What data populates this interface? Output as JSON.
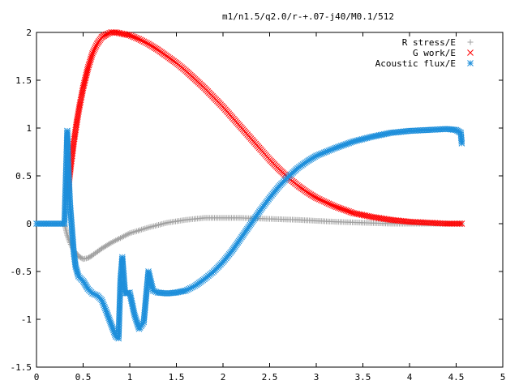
{
  "chart_data": {
    "type": "scatter",
    "title": "m1/n1.5/q2.0/r-+.07-j40/M0.1/512",
    "xlabel": "",
    "ylabel": "",
    "xlim": [
      0,
      5
    ],
    "ylim": [
      -1.5,
      2
    ],
    "x_ticks": [
      "0",
      "0.5",
      "1",
      "1.5",
      "2",
      "2.5",
      "3",
      "3.5",
      "4",
      "4.5",
      "5"
    ],
    "y_ticks": [
      "-1.5",
      "-1",
      "-0.5",
      "0",
      "0.5",
      "1",
      "1.5",
      "2"
    ],
    "legend_position": "top-right",
    "series": [
      {
        "name": "R stress/E",
        "marker": "plus",
        "color": "#a0a0a0",
        "x": [
          0.0,
          0.1,
          0.2,
          0.3,
          0.33,
          0.36,
          0.4,
          0.45,
          0.5,
          0.55,
          0.6,
          0.7,
          0.8,
          0.9,
          1.0,
          1.2,
          1.4,
          1.6,
          1.8,
          2.0,
          2.2,
          2.5,
          2.8,
          3.0,
          3.2,
          3.5,
          3.8,
          4.0,
          4.2,
          4.5,
          4.56
        ],
        "y": [
          0.0,
          0.0,
          0.0,
          0.0,
          -0.12,
          -0.2,
          -0.28,
          -0.34,
          -0.37,
          -0.36,
          -0.33,
          -0.26,
          -0.2,
          -0.15,
          -0.1,
          -0.04,
          0.01,
          0.04,
          0.06,
          0.06,
          0.06,
          0.05,
          0.04,
          0.03,
          0.02,
          0.01,
          0.0,
          0.0,
          0.0,
          0.0,
          0.0
        ]
      },
      {
        "name": "G work/E",
        "marker": "cross",
        "color": "#ff0000",
        "x": [
          0.33,
          0.35,
          0.37,
          0.4,
          0.43,
          0.46,
          0.5,
          0.55,
          0.6,
          0.65,
          0.7,
          0.75,
          0.8,
          0.85,
          0.9,
          1.0,
          1.1,
          1.2,
          1.3,
          1.4,
          1.5,
          1.6,
          1.7,
          1.8,
          1.9,
          2.0,
          2.1,
          2.2,
          2.3,
          2.4,
          2.5,
          2.6,
          2.7,
          2.8,
          2.9,
          3.0,
          3.2,
          3.4,
          3.6,
          3.8,
          4.0,
          4.2,
          4.4,
          4.56
        ],
        "y": [
          0.28,
          0.45,
          0.62,
          0.85,
          1.05,
          1.22,
          1.42,
          1.62,
          1.78,
          1.88,
          1.95,
          1.98,
          2.0,
          2.0,
          1.99,
          1.97,
          1.93,
          1.88,
          1.82,
          1.75,
          1.68,
          1.6,
          1.51,
          1.42,
          1.32,
          1.22,
          1.11,
          1.0,
          0.89,
          0.78,
          0.67,
          0.57,
          0.48,
          0.4,
          0.33,
          0.27,
          0.18,
          0.11,
          0.07,
          0.04,
          0.02,
          0.01,
          0.0,
          0.0
        ]
      },
      {
        "name": "Acoustic flux/E",
        "marker": "star",
        "color": "#1e8fdb",
        "x": [
          0.0,
          0.1,
          0.2,
          0.3,
          0.33,
          0.34,
          0.35,
          0.36,
          0.38,
          0.4,
          0.42,
          0.45,
          0.5,
          0.55,
          0.6,
          0.65,
          0.7,
          0.75,
          0.8,
          0.85,
          0.88,
          0.9,
          0.92,
          0.95,
          1.0,
          1.05,
          1.1,
          1.15,
          1.2,
          1.25,
          1.3,
          1.4,
          1.5,
          1.6,
          1.7,
          1.8,
          1.9,
          2.0,
          2.1,
          2.2,
          2.3,
          2.4,
          2.5,
          2.6,
          2.7,
          2.8,
          2.9,
          3.0,
          3.2,
          3.4,
          3.6,
          3.8,
          4.0,
          4.2,
          4.4,
          4.5,
          4.55,
          4.56
        ],
        "y": [
          0.0,
          0.0,
          0.0,
          0.0,
          0.97,
          0.65,
          0.42,
          0.2,
          -0.05,
          -0.3,
          -0.45,
          -0.55,
          -0.6,
          -0.68,
          -0.73,
          -0.75,
          -0.8,
          -0.92,
          -1.05,
          -1.18,
          -1.2,
          -0.6,
          -0.35,
          -0.73,
          -0.72,
          -0.95,
          -1.1,
          -1.03,
          -0.5,
          -0.7,
          -0.72,
          -0.73,
          -0.72,
          -0.7,
          -0.65,
          -0.58,
          -0.5,
          -0.4,
          -0.28,
          -0.14,
          0.0,
          0.14,
          0.27,
          0.39,
          0.49,
          0.58,
          0.65,
          0.71,
          0.79,
          0.86,
          0.91,
          0.95,
          0.97,
          0.98,
          0.99,
          0.98,
          0.95,
          0.84
        ]
      }
    ]
  }
}
